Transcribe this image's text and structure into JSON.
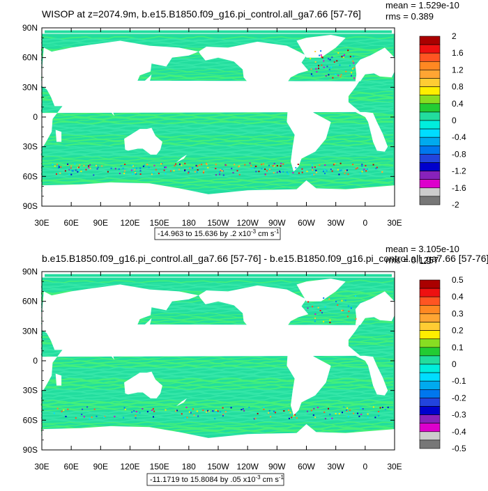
{
  "colors": {
    "ocean_base": "#22dd9e",
    "ocean_alt": "#44f07a",
    "ocean_tint": "#35e6a8",
    "land": "#ffffff",
    "frame": "#000000",
    "scale_top": [
      "#aa0000",
      "#ee1111",
      "#ff5522",
      "#ff8822",
      "#ffa533",
      "#ffcc33",
      "#ffee00",
      "#88dd22",
      "#22cc33",
      "#22dd9e"
    ],
    "scale_bottom": [
      "#00eedd",
      "#00ddff",
      "#00aaee",
      "#0077ee",
      "#2244dd",
      "#0000cc",
      "#8822bb",
      "#dd00cc",
      "#cccccc",
      "#777777"
    ]
  },
  "chart_data": [
    {
      "type": "heatmap",
      "title": "WISOP at z=2074.9m, b.e15.B1850.f09_g16.pi_control.all_ga7.66 [57-76]",
      "mean_label": "mean = 1.529e-10",
      "rms_label": "rms = 0.389",
      "x_ticks": [
        "30E",
        "60E",
        "90E",
        "120E",
        "150E",
        "180",
        "150W",
        "120W",
        "90W",
        "60W",
        "30W",
        "0",
        "30E"
      ],
      "y_ticks": [
        "90N",
        "60N",
        "30N",
        "0",
        "30S",
        "60S",
        "90S"
      ],
      "xlim": [
        30,
        390
      ],
      "ylim": [
        -90,
        90
      ],
      "range_note": {
        "prefix": "-14.963 to 15.636 by .2 x10",
        "exp": "-3",
        "suffix": " cm s",
        "unit_exp": "-1"
      },
      "colorbar_levels": [
        "2",
        "1.6",
        "1.2",
        "0.8",
        "0.4",
        "0",
        "-0.4",
        "-0.8",
        "-1.2",
        "-1.6",
        "-2"
      ]
    },
    {
      "type": "heatmap",
      "title": "b.e15.B1850.f09_g16.pi_control.all_ga7.66 [57-76] - b.e15.B1850.f09_g16.pi_control.all_ga7.66 [57-76]",
      "mean_label": "mean = 3.105e-10",
      "rms_label": "rms = 0.1257",
      "x_ticks": [
        "30E",
        "60E",
        "90E",
        "120E",
        "150E",
        "180",
        "150W",
        "120W",
        "90W",
        "60W",
        "30W",
        "0",
        "30E"
      ],
      "y_ticks": [
        "90N",
        "60N",
        "30N",
        "0",
        "30S",
        "60S",
        "90S"
      ],
      "xlim": [
        30,
        390
      ],
      "ylim": [
        -90,
        90
      ],
      "range_note": {
        "prefix": "-11.1719 to 15.8084 by .05 x10",
        "exp": "-3",
        "suffix": " cm s",
        "unit_exp": "-1"
      },
      "colorbar_levels": [
        "0.5",
        "0.4",
        "0.3",
        "0.2",
        "0.1",
        "0",
        "-0.1",
        "-0.2",
        "-0.3",
        "-0.4",
        "-0.5"
      ]
    }
  ]
}
